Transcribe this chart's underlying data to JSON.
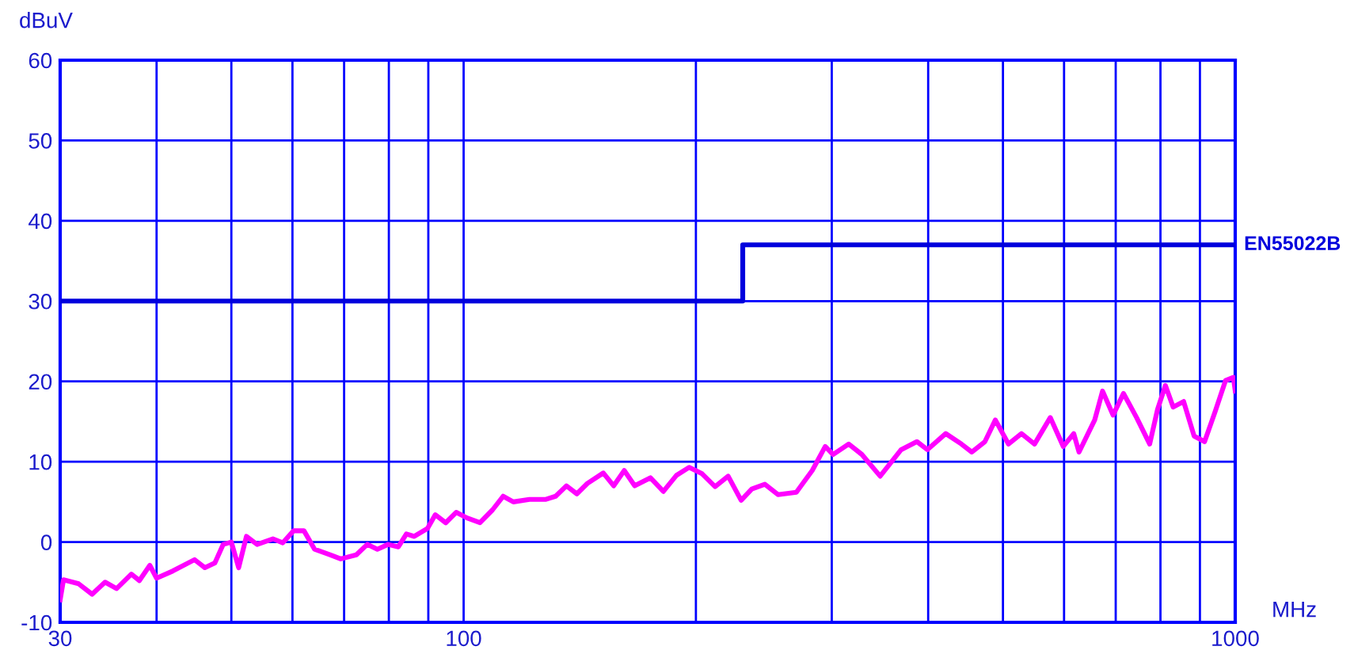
{
  "chart_data": {
    "type": "line",
    "xlabel": "MHz",
    "ylabel": "dBuV",
    "log": "x",
    "grid": true,
    "xlim": [
      30,
      1000
    ],
    "ylim": [
      -10,
      60
    ],
    "xticks": [
      30,
      {
        "value": 40,
        "label": null
      },
      {
        "value": 50,
        "label": null
      },
      {
        "value": 60,
        "label": null
      },
      {
        "value": 70,
        "label": null
      },
      {
        "value": 80,
        "label": null
      },
      {
        "value": 90,
        "label": null
      },
      100,
      {
        "value": 200,
        "label": null
      },
      {
        "value": 300,
        "label": null
      },
      {
        "value": 400,
        "label": null
      },
      {
        "value": 500,
        "label": null
      },
      {
        "value": 600,
        "label": null
      },
      {
        "value": 700,
        "label": null
      },
      {
        "value": 800,
        "label": null
      },
      {
        "value": 900,
        "label": null
      },
      1000
    ],
    "yticks": [
      -10,
      0,
      10,
      20,
      30,
      40,
      50,
      60
    ],
    "series": [
      {
        "name": "EN55022B",
        "color": "#0000dd",
        "x": [
          30,
          230,
          230,
          1000
        ],
        "values": [
          30,
          30,
          37,
          37
        ]
      },
      {
        "color": "#ff00ff",
        "x": [
          30,
          30.3,
          31.7,
          33,
          34.3,
          35.5,
          37.1,
          38,
          39.2,
          40,
          42,
          44.8,
          46.2,
          47.6,
          48.8,
          50,
          51.1,
          52.3,
          54,
          56.6,
          58.3,
          60.2,
          62.1,
          64.1,
          67.2,
          69.3,
          72.6,
          75,
          77.3,
          79.8,
          82.3,
          84.3,
          86.3,
          89.8,
          91.9,
          94.8,
          97.8,
          101,
          105,
          109,
          112.5,
          116,
          121.7,
          127.6,
          131.6,
          135.9,
          140.2,
          144.7,
          151.7,
          156.5,
          161.5,
          166.6,
          174.6,
          181.5,
          188.7,
          196,
          203.7,
          211.8,
          220.2,
          228.9,
          236.3,
          245.7,
          255.5,
          269.9,
          283,
          294.2,
          301.2,
          315.6,
          328.2,
          346.6,
          369,
          386.8,
          399,
          421.5,
          441.7,
          455.7,
          473.8,
          488.8,
          508.2,
          528.4,
          549.4,
          575.8,
          598.6,
          617.6,
          627.4,
          657.5,
          673.1,
          694.5,
          716.5,
          745,
          774.7,
          793,
          811.9,
          831,
          857.3,
          884.5,
          912.6,
          941.5,
          971.4,
          994.5,
          1000
        ],
        "values": [
          -7.2,
          -4.7,
          -5.2,
          -6.5,
          -5,
          -5.8,
          -4,
          -4.8,
          -2.9,
          -4.5,
          -3.6,
          -2.2,
          -3.2,
          -2.6,
          -0.3,
          0,
          -3.2,
          0.7,
          -0.3,
          0.4,
          -0.1,
          1.4,
          1.4,
          -0.9,
          -1.6,
          -2.1,
          -1.6,
          -0.3,
          -0.9,
          -0.3,
          -0.6,
          1,
          0.7,
          1.7,
          3.4,
          2.4,
          3.7,
          3,
          2.4,
          4,
          5.7,
          5,
          5.3,
          5.3,
          5.7,
          7,
          6,
          7.3,
          8.6,
          7,
          8.9,
          7,
          8,
          6.3,
          8.3,
          9.3,
          8.5,
          6.9,
          8.2,
          5.2,
          6.6,
          7.2,
          5.9,
          6.2,
          8.9,
          11.9,
          10.9,
          12.2,
          10.9,
          8.2,
          11.5,
          12.5,
          11.5,
          13.5,
          12.2,
          11.2,
          12.5,
          15.2,
          12.2,
          13.5,
          12.2,
          15.5,
          11.9,
          13.5,
          11.2,
          15.2,
          18.8,
          15.8,
          18.5,
          15.5,
          12.2,
          16.5,
          19.5,
          16.8,
          17.5,
          13.2,
          12.5,
          16.2,
          20.1,
          20.5,
          18.8
        ]
      }
    ]
  }
}
